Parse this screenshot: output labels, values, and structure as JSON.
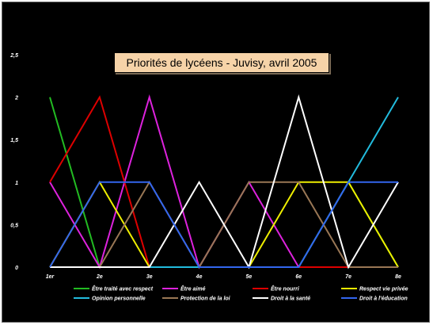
{
  "chart_data": {
    "type": "line",
    "title": "Priorités de lycéens - Juvisy, avril 2005",
    "categories": [
      "1er",
      "2e",
      "3e",
      "4e",
      "5e",
      "6e",
      "7e",
      "8e"
    ],
    "y_ticks": [
      "0",
      "0,5",
      "1",
      "1,5",
      "2",
      "2,5"
    ],
    "ylim": [
      0,
      2.5
    ],
    "grid": false,
    "legend_position": "bottom",
    "series": [
      {
        "name": "Être traité avec respect",
        "color": "#22bb22",
        "values": [
          2,
          0,
          0,
          0,
          0,
          0,
          1,
          0
        ]
      },
      {
        "name": "Être aimé",
        "color": "#dd22dd",
        "values": [
          1,
          0,
          2,
          0,
          1,
          0,
          0,
          0
        ]
      },
      {
        "name": "Être nourri",
        "color": "#dd0000",
        "values": [
          1,
          2,
          0,
          0,
          0,
          0,
          0,
          0
        ]
      },
      {
        "name": "Respect vie privée",
        "color": "#eeee00",
        "values": [
          0,
          1,
          0,
          0,
          0,
          1,
          1,
          0
        ]
      },
      {
        "name": "Opinion personnelle",
        "color": "#22bbdd",
        "values": [
          0,
          0,
          0,
          0,
          0,
          0,
          1,
          2
        ]
      },
      {
        "name": "Protection de la loi",
        "color": "#997755",
        "values": [
          0,
          0,
          1,
          0,
          1,
          1,
          0,
          0
        ]
      },
      {
        "name": "Droit à la santé",
        "color": "#ffffff",
        "values": [
          0,
          0,
          0,
          1,
          0,
          2,
          0,
          1
        ]
      },
      {
        "name": "Droit à  l'éducation",
        "color": "#3366ee",
        "values": [
          0,
          1,
          1,
          0,
          0,
          0,
          1,
          1
        ]
      }
    ]
  }
}
